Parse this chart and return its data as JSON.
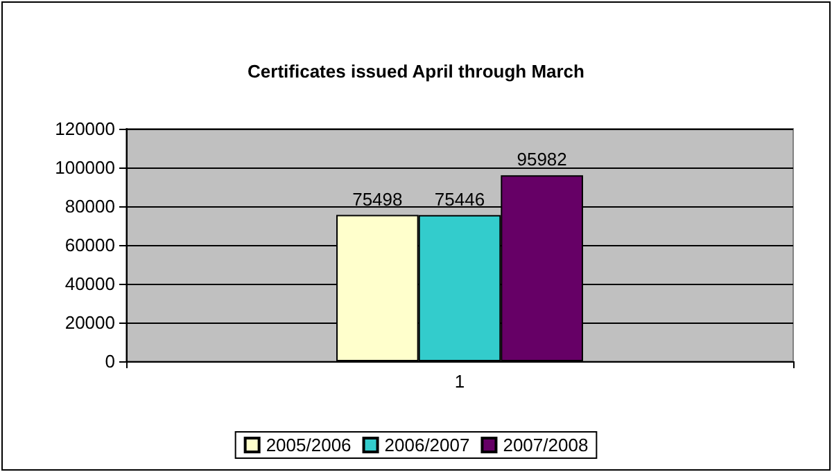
{
  "chart_data": {
    "type": "bar",
    "title": "Certificates issued April through March",
    "categories": [
      "1"
    ],
    "series": [
      {
        "name": "2005/2006",
        "color": "#ffffcc",
        "values": [
          75498
        ]
      },
      {
        "name": "2006/2007",
        "color": "#33cccc",
        "values": [
          75446
        ]
      },
      {
        "name": "2007/2008",
        "color": "#660066",
        "values": [
          95982
        ]
      }
    ],
    "ylim": [
      0,
      120000
    ],
    "yticks": [
      0,
      20000,
      40000,
      60000,
      80000,
      100000,
      120000
    ],
    "grid": "y",
    "legend": "bottom",
    "data_labels": true
  }
}
